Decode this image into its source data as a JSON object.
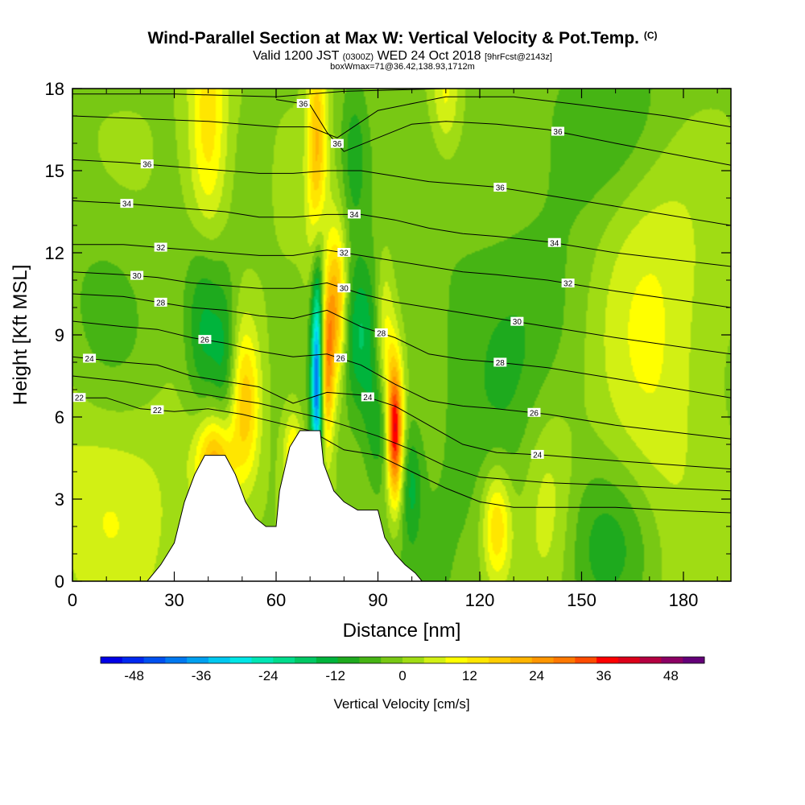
{
  "header": {
    "title": "Wind-Parallel Section at Max W: Vertical Velocity & Pot.Temp.",
    "title_mark": "(C)",
    "subtitle_a": "Valid 1200 JST",
    "subtitle_b": "(0300Z)",
    "subtitle_c": "WED 24 Oct 2018",
    "subtitle_d": "[9hrFcst@2143z]",
    "info": "boxWmax=71@36.42,138.93,1712m"
  },
  "chart_data": {
    "type": "heatmap",
    "title": "Wind-Parallel Section at Max W: Vertical Velocity & Pot.Temp.",
    "xlabel": "Distance [nm]",
    "ylabel": "Height [Kft MSL]",
    "xlim": [
      0,
      194
    ],
    "ylim": [
      0,
      18
    ],
    "x_ticks": [
      "0",
      "30",
      "60",
      "90",
      "120",
      "150",
      "180"
    ],
    "y_ticks": [
      "0",
      "3",
      "6",
      "9",
      "12",
      "15",
      "18"
    ],
    "colorbar": {
      "title": "Vertical Velocity [cm/s]",
      "tick_labels": [
        "-48",
        "-36",
        "-24",
        "-12",
        "0",
        "12",
        "24",
        "36",
        "48"
      ],
      "range": [
        -54,
        54
      ],
      "step": 4,
      "colors": [
        "#0000e6",
        "#0028f0",
        "#0050f0",
        "#0078f0",
        "#00a0f0",
        "#00c8f0",
        "#00e6e6",
        "#00e6b4",
        "#00dc8c",
        "#00c864",
        "#00b43c",
        "#1eaa1e",
        "#46b414",
        "#78c814",
        "#a0dc14",
        "#d2f014",
        "#ffff00",
        "#ffe600",
        "#ffcd00",
        "#ffb400",
        "#ff9600",
        "#ff7800",
        "#ff4b00",
        "#ff0000",
        "#dc0019",
        "#b40041",
        "#8c0064",
        "#640078"
      ]
    },
    "w_features": [
      {
        "x": 40,
        "z": 16.5,
        "sx": 4,
        "sz": 3.5,
        "w": 16
      },
      {
        "x": 42,
        "z": 4.3,
        "sx": 4,
        "sz": 1.3,
        "w": 24
      },
      {
        "x": 51,
        "z": 6.5,
        "sx": 3,
        "sz": 2,
        "w": 18
      },
      {
        "x": 39,
        "z": 9.3,
        "sx": 4,
        "sz": 2.5,
        "w": -15
      },
      {
        "x": 45,
        "z": 8,
        "sx": 2.5,
        "sz": 2.2,
        "w": -10
      },
      {
        "x": 65,
        "z": 4.5,
        "sx": 2,
        "sz": 1.2,
        "w": 15
      },
      {
        "x": 72,
        "z": 7.2,
        "sx": 1.2,
        "sz": 2.3,
        "w": -42
      },
      {
        "x": 73,
        "z": 11,
        "sx": 1.5,
        "sz": 2,
        "w": -10
      },
      {
        "x": 75,
        "z": 8,
        "sx": 1.5,
        "sz": 2.2,
        "w": 28
      },
      {
        "x": 78,
        "z": 10,
        "sx": 2,
        "sz": 2,
        "w": 24
      },
      {
        "x": 72,
        "z": 16,
        "sx": 2,
        "sz": 3,
        "w": 20
      },
      {
        "x": 85,
        "z": 9,
        "sx": 4,
        "sz": 2,
        "w": -15
      },
      {
        "x": 83,
        "z": 15.5,
        "sx": 3,
        "sz": 2,
        "w": -10
      },
      {
        "x": 92,
        "z": 9,
        "sx": 2,
        "sz": 2,
        "w": 12
      },
      {
        "x": 95,
        "z": 5.5,
        "sx": 1.6,
        "sz": 1.8,
        "w": 42
      },
      {
        "x": 90,
        "z": 5.8,
        "sx": 2.5,
        "sz": 1.5,
        "w": -10
      },
      {
        "x": 100,
        "z": 3.5,
        "sx": 2,
        "sz": 1.5,
        "w": -10
      },
      {
        "x": 110,
        "z": 17.8,
        "sx": 3,
        "sz": 1.5,
        "w": 10
      },
      {
        "x": 120,
        "z": 5,
        "sx": 20,
        "sz": 8,
        "w": -4
      },
      {
        "x": 140,
        "z": 3,
        "sx": 6,
        "sz": 3,
        "w": 10
      },
      {
        "x": 125,
        "z": 2,
        "sx": 3,
        "sz": 1.5,
        "w": 18
      },
      {
        "x": 160,
        "z": 1.5,
        "sx": 10,
        "sz": 2,
        "w": -8
      },
      {
        "x": 165,
        "z": 11,
        "sx": 12,
        "sz": 4,
        "w": 8
      },
      {
        "x": 175,
        "z": 6,
        "sx": 10,
        "sz": 4,
        "w": 6
      },
      {
        "x": 160,
        "z": 17,
        "sx": 12,
        "sz": 2.5,
        "w": -8
      },
      {
        "x": 10,
        "z": 10,
        "sx": 10,
        "sz": 3,
        "w": -5
      },
      {
        "x": 10,
        "z": 3,
        "sx": 15,
        "sz": 3,
        "w": 8
      },
      {
        "x": 140,
        "z": 9,
        "sx": 15,
        "sz": 4,
        "w": -5
      }
    ],
    "terrain": [
      [
        0,
        0
      ],
      [
        22,
        0
      ],
      [
        24,
        0.3
      ],
      [
        26,
        0.6
      ],
      [
        28,
        1
      ],
      [
        30,
        1.4
      ],
      [
        33,
        2.9
      ],
      [
        36,
        3.9
      ],
      [
        39,
        4.6
      ],
      [
        45,
        4.6
      ],
      [
        48,
        3.9
      ],
      [
        51,
        2.9
      ],
      [
        54,
        2.3
      ],
      [
        57,
        2
      ],
      [
        60,
        2
      ],
      [
        61,
        3.3
      ],
      [
        64,
        4.9
      ],
      [
        67,
        5.5
      ],
      [
        73,
        5.5
      ],
      [
        74,
        4.3
      ],
      [
        77,
        3.3
      ],
      [
        80,
        2.9
      ],
      [
        84,
        2.6
      ],
      [
        90,
        2.6
      ],
      [
        92,
        1.6
      ],
      [
        95,
        1
      ],
      [
        98,
        0.6
      ],
      [
        101,
        0.3
      ],
      [
        103,
        0
      ],
      [
        194,
        0
      ]
    ],
    "isentropes": [
      {
        "label": "22",
        "pts": [
          [
            0,
            6.7
          ],
          [
            10,
            6.7
          ],
          [
            20,
            6.3
          ],
          [
            30,
            6.2
          ],
          [
            40,
            6.3
          ],
          [
            50,
            6.1
          ],
          [
            60,
            5.8
          ],
          [
            70,
            5.5
          ],
          [
            80,
            4.8
          ],
          [
            90,
            4.6
          ],
          [
            100,
            4.0
          ],
          [
            110,
            3.4
          ],
          [
            120,
            2.9
          ],
          [
            130,
            2.7
          ],
          [
            140,
            2.7
          ],
          [
            160,
            2.7
          ],
          [
            175,
            2.6
          ],
          [
            194,
            2.5
          ]
        ],
        "at": [
          2,
          25
        ]
      },
      {
        "label": "24",
        "pts": [
          [
            0,
            8.2
          ],
          [
            15,
            8.0
          ],
          [
            25,
            7.9
          ],
          [
            35,
            7.5
          ],
          [
            45,
            7.3
          ],
          [
            55,
            7.1
          ],
          [
            65,
            6.5
          ],
          [
            75,
            6.9
          ],
          [
            85,
            6.8
          ],
          [
            95,
            6.4
          ],
          [
            105,
            5.7
          ],
          [
            115,
            5.0
          ],
          [
            125,
            4.7
          ],
          [
            140,
            4.6
          ],
          [
            160,
            4.4
          ],
          [
            194,
            4.1
          ]
        ],
        "at": [
          5,
          87,
          137
        ]
      },
      {
        "label": "26",
        "pts": [
          [
            0,
            9.5
          ],
          [
            15,
            9.3
          ],
          [
            25,
            9.2
          ],
          [
            35,
            8.9
          ],
          [
            45,
            8.7
          ],
          [
            55,
            8.4
          ],
          [
            65,
            8.2
          ],
          [
            75,
            8.3
          ],
          [
            85,
            7.9
          ],
          [
            95,
            7.2
          ],
          [
            105,
            6.6
          ],
          [
            115,
            6.4
          ],
          [
            125,
            6.3
          ],
          [
            140,
            6.1
          ],
          [
            160,
            5.7
          ],
          [
            194,
            5.2
          ]
        ],
        "at": [
          39,
          79,
          136
        ]
      },
      {
        "label": "28",
        "pts": [
          [
            0,
            10.5
          ],
          [
            15,
            10.4
          ],
          [
            25,
            10.2
          ],
          [
            35,
            10.0
          ],
          [
            45,
            9.9
          ],
          [
            55,
            9.7
          ],
          [
            65,
            9.6
          ],
          [
            75,
            9.9
          ],
          [
            85,
            9.3
          ],
          [
            95,
            8.9
          ],
          [
            105,
            8.3
          ],
          [
            115,
            8.1
          ],
          [
            125,
            8.0
          ],
          [
            140,
            7.8
          ],
          [
            160,
            7.4
          ],
          [
            194,
            6.7
          ]
        ],
        "at": [
          26,
          91,
          126
        ]
      },
      {
        "label": "30",
        "pts": [
          [
            0,
            11.3
          ],
          [
            15,
            11.2
          ],
          [
            25,
            11.1
          ],
          [
            35,
            10.9
          ],
          [
            45,
            10.8
          ],
          [
            55,
            10.7
          ],
          [
            65,
            10.7
          ],
          [
            75,
            10.9
          ],
          [
            85,
            10.5
          ],
          [
            95,
            10.2
          ],
          [
            105,
            10.0
          ],
          [
            115,
            9.8
          ],
          [
            125,
            9.6
          ],
          [
            140,
            9.3
          ],
          [
            160,
            8.9
          ],
          [
            194,
            8.3
          ]
        ],
        "at": [
          19,
          80,
          131
        ]
      },
      {
        "label": "32",
        "pts": [
          [
            0,
            12.3
          ],
          [
            15,
            12.3
          ],
          [
            25,
            12.2
          ],
          [
            35,
            12.1
          ],
          [
            45,
            12.0
          ],
          [
            55,
            11.9
          ],
          [
            65,
            11.9
          ],
          [
            75,
            12.1
          ],
          [
            85,
            11.9
          ],
          [
            95,
            11.7
          ],
          [
            105,
            11.5
          ],
          [
            115,
            11.3
          ],
          [
            125,
            11.2
          ],
          [
            140,
            11.0
          ],
          [
            160,
            10.6
          ],
          [
            194,
            10.0
          ]
        ],
        "at": [
          26,
          80,
          146
        ]
      },
      {
        "label": "34",
        "pts": [
          [
            0,
            13.9
          ],
          [
            15,
            13.8
          ],
          [
            25,
            13.7
          ],
          [
            35,
            13.6
          ],
          [
            45,
            13.5
          ],
          [
            55,
            13.3
          ],
          [
            65,
            13.3
          ],
          [
            75,
            13.4
          ],
          [
            85,
            13.4
          ],
          [
            95,
            13.2
          ],
          [
            105,
            12.9
          ],
          [
            115,
            12.7
          ],
          [
            125,
            12.6
          ],
          [
            140,
            12.4
          ],
          [
            160,
            12.0
          ],
          [
            194,
            11.5
          ]
        ],
        "at": [
          16,
          83,
          142
        ]
      },
      {
        "label": "36",
        "pts": [
          [
            0,
            15.4
          ],
          [
            15,
            15.3
          ],
          [
            25,
            15.2
          ],
          [
            35,
            15.1
          ],
          [
            45,
            15.0
          ],
          [
            55,
            14.9
          ],
          [
            65,
            14.9
          ],
          [
            75,
            15.0
          ],
          [
            85,
            15.0
          ],
          [
            95,
            14.8
          ],
          [
            105,
            14.6
          ],
          [
            115,
            14.5
          ],
          [
            125,
            14.4
          ],
          [
            140,
            14.1
          ],
          [
            160,
            13.7
          ],
          [
            194,
            13.0
          ]
        ],
        "at": [
          22,
          126
        ]
      },
      {
        "label": "36",
        "pts": [
          [
            60,
            17.6
          ],
          [
            70,
            17.4
          ],
          [
            75,
            16.4
          ],
          [
            80,
            15.7
          ],
          [
            90,
            16.2
          ],
          [
            100,
            16.7
          ],
          [
            110,
            16.8
          ],
          [
            125,
            16.7
          ],
          [
            140,
            16.5
          ],
          [
            160,
            16.0
          ],
          [
            194,
            15.2
          ]
        ],
        "at": [
          68,
          78,
          143
        ]
      },
      {
        "label": "",
        "pts": [
          [
            0,
            7.5
          ],
          [
            15,
            7.3
          ],
          [
            25,
            7.1
          ],
          [
            35,
            6.9
          ],
          [
            45,
            6.7
          ],
          [
            55,
            6.5
          ],
          [
            65,
            6.2
          ],
          [
            72,
            6.0
          ],
          [
            80,
            5.7
          ],
          [
            90,
            5.3
          ],
          [
            100,
            4.8
          ],
          [
            110,
            4.2
          ],
          [
            120,
            3.8
          ],
          [
            140,
            3.6
          ],
          [
            160,
            3.5
          ],
          [
            194,
            3.3
          ]
        ],
        "at": []
      },
      {
        "label": "",
        "pts": [
          [
            0,
            17.0
          ],
          [
            20,
            16.9
          ],
          [
            40,
            16.8
          ],
          [
            60,
            16.6
          ],
          [
            70,
            16.6
          ],
          [
            78,
            16.2
          ],
          [
            90,
            17.2
          ],
          [
            110,
            17.7
          ],
          [
            130,
            17.7
          ],
          [
            150,
            17.4
          ],
          [
            175,
            17.0
          ],
          [
            194,
            16.6
          ]
        ],
        "at": []
      },
      {
        "label": "",
        "pts": [
          [
            0,
            17.8
          ],
          [
            30,
            17.8
          ],
          [
            60,
            17.7
          ],
          [
            80,
            17.9
          ],
          [
            110,
            18.0
          ]
        ],
        "at": []
      }
    ]
  }
}
